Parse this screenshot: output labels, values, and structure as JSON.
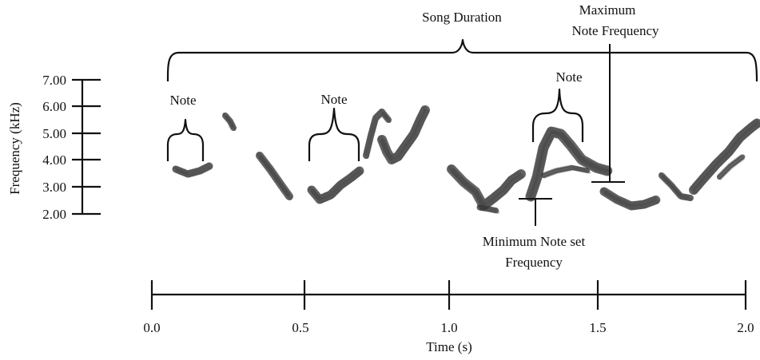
{
  "figure": {
    "ylabel": "Frequency (kHz)",
    "xlabel": "Time (s)",
    "y_ticks": [
      "7.00",
      "6.00",
      "5.00",
      "4.00",
      "3.00",
      "2.00"
    ],
    "x_ticks": [
      "0.0",
      "0.5",
      "1.0",
      "1.5",
      "2.0"
    ],
    "annotations": {
      "song_duration": "Song Duration",
      "max_note_freq_line1": "Maximum",
      "max_note_freq_line2": "Note Frequency",
      "note_1": "Note",
      "note_2": "Note",
      "note_3": "Note",
      "min_note_line1": "Minimum Note set",
      "min_note_line2": "Frequency"
    },
    "colors": {
      "ink": "#111111",
      "spectrogram": "#3a3a3a"
    }
  }
}
